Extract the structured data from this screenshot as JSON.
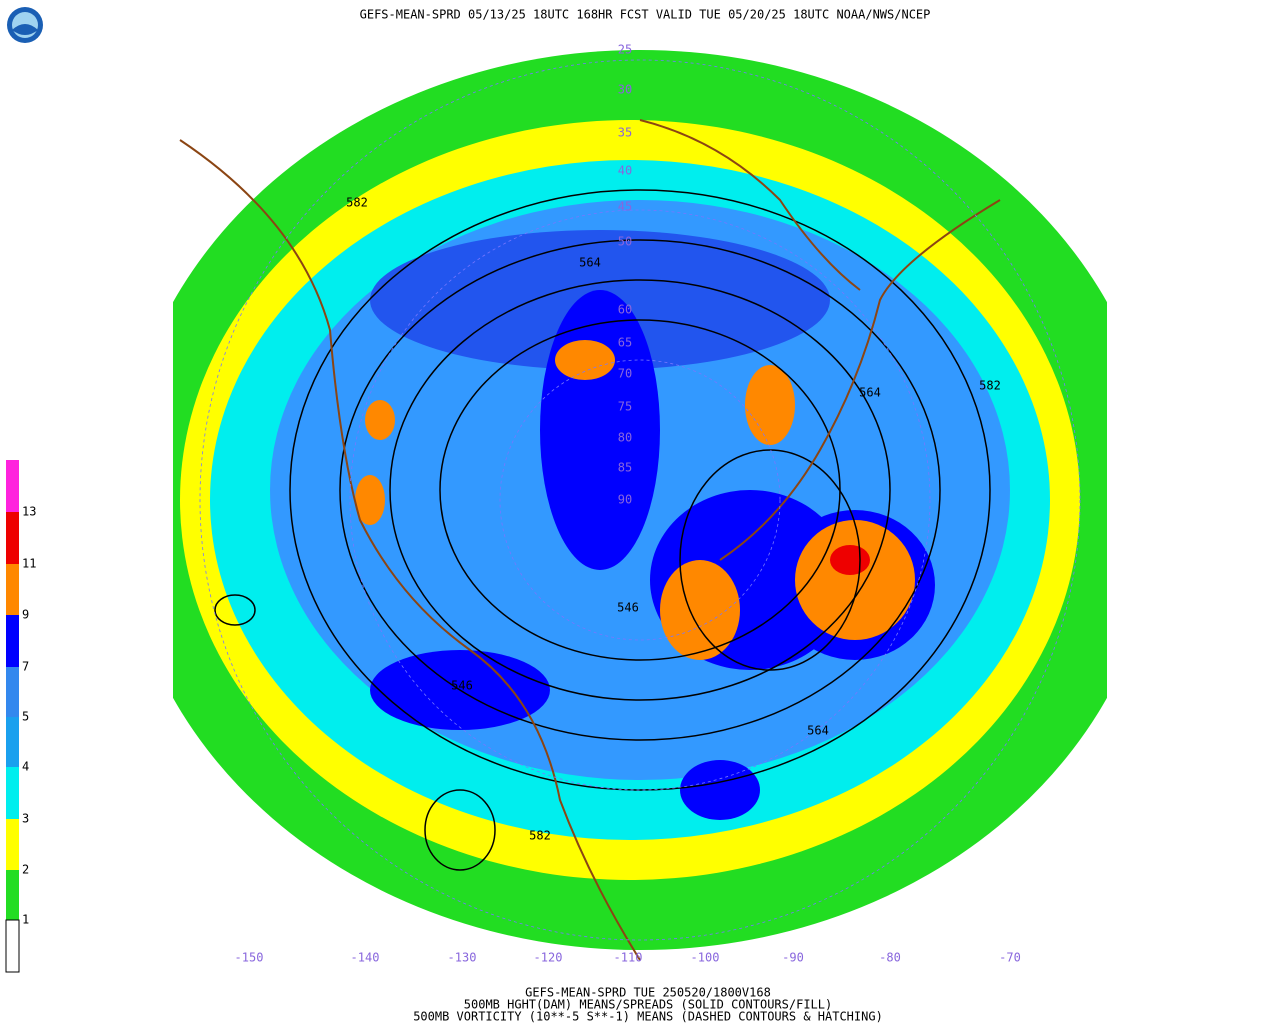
{
  "header": {
    "title": "GEFS-MEAN-SPRD 05/13/25 18UTC 168HR FCST VALID TUE 05/20/25 18UTC NOAA/NWS/NCEP"
  },
  "colorbar": {
    "labels": [
      "13",
      "11",
      "9",
      "7",
      "5",
      "4",
      "3",
      "2",
      "1"
    ]
  },
  "map": {
    "latitude_labels": [
      "25",
      "30",
      "35",
      "40",
      "45",
      "50",
      "60",
      "65",
      "70",
      "75",
      "80",
      "85",
      "90"
    ],
    "longitude_labels": [
      "-150",
      "-140",
      "-130",
      "-120",
      "-110",
      "-100",
      "-90",
      "-80",
      "-70"
    ],
    "contour_labels": [
      "582",
      "564",
      "564",
      "582",
      "546",
      "546",
      "564",
      "582"
    ]
  },
  "footer": {
    "lines": [
      "GEFS-MEAN-SPRD TUE 250520/1800V168",
      "500MB HGHT(DAM) MEANS/SPREADS (SOLID CONTOURS/FILL)",
      "500MB VORTICITY (10**-5 S**-1) MEANS (DASHED CONTOURS & HATCHING)"
    ]
  }
}
